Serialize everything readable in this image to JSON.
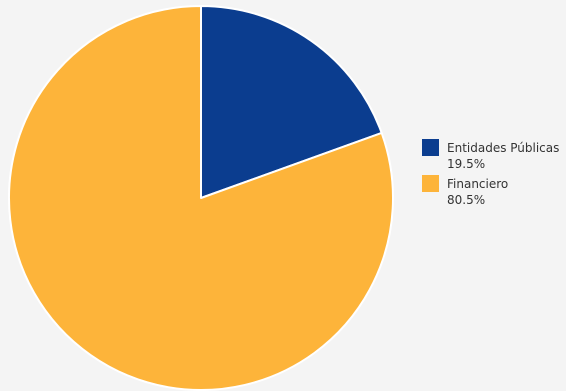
{
  "chart_data": {
    "type": "pie",
    "series": [
      {
        "name": "Entidades Públicas",
        "value": 19.5,
        "label": "19.5%",
        "color": "#0b3d8f"
      },
      {
        "name": "Financiero",
        "value": 80.5,
        "label": "80.5%",
        "color": "#fdb43a"
      }
    ],
    "legend_position": "right",
    "start_angle": "12 o'clock, clockwise"
  }
}
